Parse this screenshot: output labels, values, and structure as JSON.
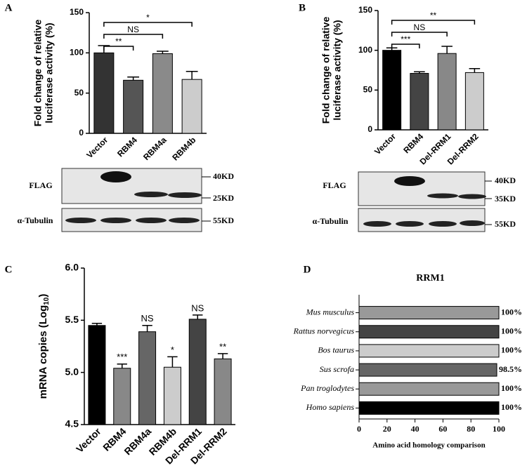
{
  "chart_data": [
    {
      "type": "bar",
      "panel": "A",
      "ylabel": [
        "Fold change of relative",
        "luciferase activity (%)"
      ],
      "categories": [
        "Vector",
        "RBM4",
        "RBM4a",
        "RBM4b"
      ],
      "values": [
        100,
        66,
        99,
        67
      ],
      "errors": [
        9,
        4,
        3,
        10
      ],
      "colors": [
        "#333333",
        "#555555",
        "#8a8a8a",
        "#cccccc"
      ],
      "ylim": [
        0,
        150
      ],
      "yticks": [
        0,
        50,
        100,
        150
      ],
      "brackets": [
        {
          "from": 0,
          "to": 1,
          "label": "**"
        },
        {
          "from": 0,
          "to": 2,
          "label": "NS"
        },
        {
          "from": 0,
          "to": 3,
          "label": "*"
        }
      ]
    },
    {
      "type": "bar",
      "panel": "B",
      "ylabel": [
        "Fold change of relative",
        "luciferase activity (%)"
      ],
      "categories": [
        "Vector",
        "RBM4",
        "Del-RRM1",
        "Del-RRM2"
      ],
      "values": [
        100,
        71,
        96,
        72
      ],
      "errors": [
        3,
        2,
        9,
        5
      ],
      "colors": [
        "#000000",
        "#444444",
        "#888888",
        "#cccccc"
      ],
      "ylim": [
        0,
        150
      ],
      "yticks": [
        0,
        50,
        100,
        150
      ],
      "brackets": [
        {
          "from": 0,
          "to": 1,
          "label": "***"
        },
        {
          "from": 0,
          "to": 2,
          "label": "NS"
        },
        {
          "from": 0,
          "to": 3,
          "label": "**"
        }
      ]
    },
    {
      "type": "bar",
      "panel": "C",
      "ylabel": [
        "mRNA copies (Log",
        "10",
        ")"
      ],
      "categories": [
        "Vector",
        "RBM4",
        "RBM4a",
        "RBM4b",
        "Del-RRM1",
        "Del-RRM2"
      ],
      "values": [
        5.45,
        5.04,
        5.39,
        5.05,
        5.51,
        5.13
      ],
      "errors": [
        0.02,
        0.04,
        0.06,
        0.1,
        0.04,
        0.05
      ],
      "significance": [
        null,
        "***",
        "NS",
        "*",
        "NS",
        "**"
      ],
      "colors": [
        "#000000",
        "#888888",
        "#666666",
        "#cccccc",
        "#444444",
        "#888888"
      ],
      "ylim": [
        4.5,
        6.0
      ],
      "yticks": [
        4.5,
        {
          "value": 5,
          "label": "5.0"
        },
        5.5,
        {
          "value": 6,
          "label": "6.0"
        }
      ]
    },
    {
      "type": "hbar",
      "panel": "D",
      "title": "RRM1",
      "xlabel": "Amino acid homology comparison",
      "categories": [
        "Mus musculus",
        "Rattus norvegicus",
        "Bos taurus",
        "Sus scrofa",
        "Pan troglodytes",
        "Homo sapiens"
      ],
      "values": [
        100,
        100,
        100,
        98.5,
        100,
        100
      ],
      "value_labels": [
        "100%",
        "100%",
        "100%",
        "98.5%",
        "100%",
        "100%"
      ],
      "colors": [
        "#999999",
        "#444444",
        "#cccccc",
        "#666666",
        "#999999",
        "#000000"
      ],
      "xlim": [
        0,
        100
      ],
      "xticks": [
        0,
        20,
        40,
        60,
        80,
        100
      ]
    }
  ],
  "blots": [
    {
      "rows": [
        "FLAG",
        "α-Tubulin"
      ],
      "markers": [
        "40KD",
        "25KD",
        "55KD"
      ]
    },
    {
      "rows": [
        "FLAG",
        "α-Tubulin"
      ],
      "markers": [
        "40KD",
        "35KD",
        "55KD"
      ]
    }
  ]
}
